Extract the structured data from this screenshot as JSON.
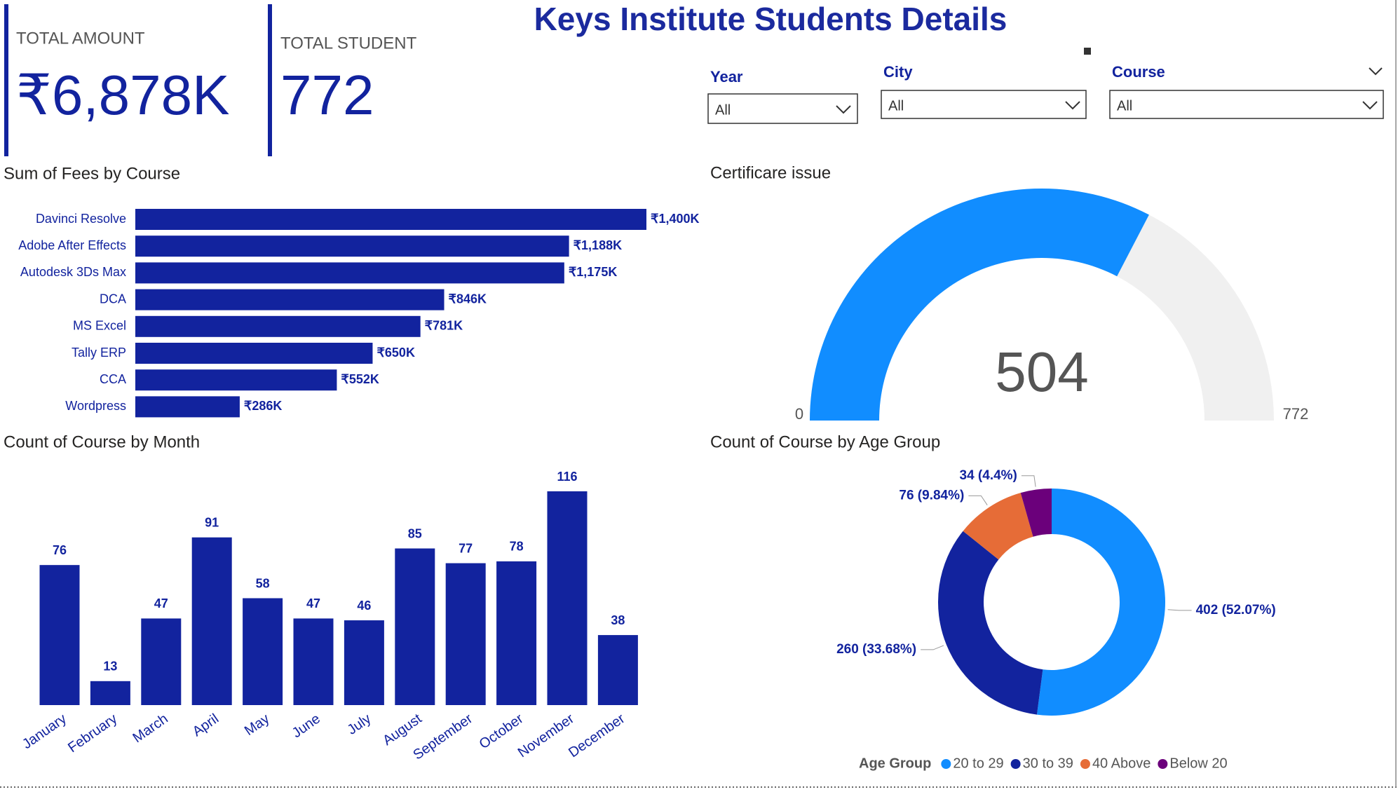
{
  "title": "Keys Institute Students Details",
  "cards": [
    {
      "label": "TOTAL AMOUNT",
      "value": "₹6,878K"
    },
    {
      "label": "TOTAL STUDENT",
      "value": "772"
    }
  ],
  "slicers": [
    {
      "label": "Year",
      "value": "All"
    },
    {
      "label": "City",
      "value": "All"
    },
    {
      "label": "Course",
      "value": "All"
    }
  ],
  "chart_data": [
    {
      "type": "hbar",
      "title": "Sum of Fees by Course",
      "categories": [
        "Davinci Resolve",
        "Adobe After Effects",
        "Autodesk 3Ds Max",
        "DCA",
        "MS Excel",
        "Tally ERP",
        "CCA",
        "Wordpress"
      ],
      "values": [
        1400,
        1188,
        1175,
        846,
        781,
        650,
        552,
        286
      ],
      "value_labels": [
        "₹1,400K",
        "₹1,188K",
        "₹1,175K",
        "₹846K",
        "₹781K",
        "₹650K",
        "₹552K",
        "₹286K"
      ],
      "color": "#12239E"
    },
    {
      "type": "bar",
      "title": "Count of Course by Month",
      "categories": [
        "January",
        "February",
        "March",
        "April",
        "May",
        "June",
        "July",
        "August",
        "September",
        "October",
        "November",
        "December"
      ],
      "values": [
        76,
        13,
        47,
        91,
        58,
        47,
        46,
        85,
        77,
        78,
        116,
        38
      ],
      "color": "#12239E"
    },
    {
      "type": "gauge",
      "title": "Certificare issue",
      "value": 504,
      "min": 0,
      "max": 772,
      "color": "#118DFF",
      "track_color": "#F0F0F0"
    },
    {
      "type": "donut",
      "title": "Count of Course by Age Group",
      "legend_title": "Age Group",
      "categories": [
        "20 to 29",
        "30 to 39",
        "40 Above",
        "Below 20"
      ],
      "values": [
        402,
        260,
        76,
        34
      ],
      "value_labels": [
        "402 (52.07%)",
        "260 (33.68%)",
        "76 (9.84%)",
        "34 (4.4%)"
      ],
      "colors": [
        "#118DFF",
        "#12239E",
        "#E66C37",
        "#6B007B"
      ]
    }
  ]
}
